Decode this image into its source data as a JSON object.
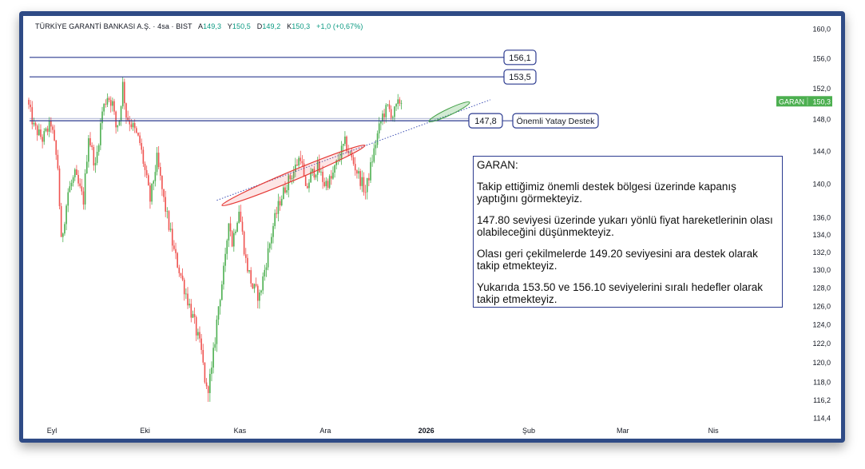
{
  "header": {
    "symbol": "TÜRKİYE GARANTİ BANKASI A.Ş. · 4sa · BIST",
    "open_label": "A",
    "open_value": "149,3",
    "high_label": "Y",
    "high_value": "150,5",
    "low_label": "D",
    "low_value": "149,2",
    "close_label": "K",
    "close_value": "150,3",
    "change": "+1,0 (+0,67%)"
  },
  "price_tag": {
    "ticker": "GARAN",
    "price": "150,3",
    "value": 150.3
  },
  "levels": [
    {
      "label": "156,1",
      "value": 156.1
    },
    {
      "label": "153,5",
      "value": 153.5
    },
    {
      "label": "147,8",
      "value": 147.8,
      "note": "Önemli Yatay Destek"
    }
  ],
  "note": {
    "title": "GARAN:",
    "paragraphs": [
      "Takip ettiğimiz önemli destek bölgesi üzerinde kapanış yaptığını görmekteyiz.",
      "147.80 seviyesi üzerinde yukarı yönlü fiyat hareketlerinin olası olabileceğini düşünmekteyiz.",
      "Olası geri çekilmelerde 149.20 seviyesini ara destek olarak takip etmekteyiz.",
      "Yukarıda 153.50 ve 156.10 seviyelerini sıralı hedefler olarak takip etmekteyiz."
    ]
  },
  "colors": {
    "up": "#4caf50",
    "down": "#ef5350",
    "level_line": "#2b3a8f",
    "frame": "#2f4b86",
    "tag": "#4caf50"
  },
  "chart_data": {
    "type": "candlestick",
    "y_scale": "log",
    "ylim": [
      113.5,
      161.0
    ],
    "y_ticks": [
      "160,0",
      "156,0",
      "152,0",
      "148,0",
      "144,0",
      "140,0",
      "136,0",
      "134,0",
      "132,0",
      "130,0",
      "128,0",
      "126,0",
      "124,0",
      "122,0",
      "120,0",
      "118,0",
      "116,2",
      "114,4"
    ],
    "y_tick_values": [
      160,
      156,
      152,
      148,
      144,
      140,
      136,
      134,
      132,
      130,
      128,
      126,
      124,
      122,
      120,
      118,
      116.2,
      114.4
    ],
    "x_ticks": [
      {
        "label": "Eyl",
        "bold": false
      },
      {
        "label": "Eki",
        "bold": false
      },
      {
        "label": "Kas",
        "bold": false
      },
      {
        "label": "Ara",
        "bold": false
      },
      {
        "label": "2026",
        "bold": true
      },
      {
        "label": "Şub",
        "bold": false
      },
      {
        "label": "Mar",
        "bold": false
      },
      {
        "label": "Nis",
        "bold": false
      }
    ],
    "x_tick_positions": [
      0,
      54.5,
      110,
      160,
      219,
      279,
      334,
      387
    ],
    "bar_count": 270,
    "trendline": {
      "from": {
        "bar": 110,
        "value": 138.0
      },
      "to": {
        "bar": 270,
        "value": 150.5
      },
      "style": "dotted"
    },
    "highlights": [
      {
        "center_bar": 140,
        "center_value": 141.5,
        "span_bars": 82
      },
      {
        "center_bar": 255,
        "center_value": 149.0,
        "span_bars": 28
      }
    ],
    "path_anchors": [
      [
        0,
        150.5
      ],
      [
        4,
        147
      ],
      [
        9,
        145.5
      ],
      [
        14,
        147.5
      ],
      [
        18,
        142
      ],
      [
        20,
        133
      ],
      [
        24,
        139
      ],
      [
        28,
        141
      ],
      [
        33,
        138
      ],
      [
        36,
        146
      ],
      [
        40,
        142
      ],
      [
        44,
        149
      ],
      [
        47,
        151
      ],
      [
        50,
        150
      ],
      [
        52,
        147
      ],
      [
        54,
        148
      ],
      [
        56,
        152.5
      ],
      [
        58,
        148.5
      ],
      [
        62,
        147
      ],
      [
        66,
        145
      ],
      [
        72,
        138
      ],
      [
        76,
        143
      ],
      [
        80,
        138
      ],
      [
        86,
        132
      ],
      [
        92,
        128
      ],
      [
        98,
        124
      ],
      [
        102,
        121
      ],
      [
        105,
        117
      ],
      [
        108,
        119
      ],
      [
        112,
        126
      ],
      [
        116,
        131
      ],
      [
        118,
        136
      ],
      [
        120,
        133
      ],
      [
        124,
        137
      ],
      [
        128,
        131
      ],
      [
        132,
        128
      ],
      [
        136,
        127
      ],
      [
        140,
        131
      ],
      [
        144,
        135
      ],
      [
        148,
        138
      ],
      [
        152,
        140
      ],
      [
        156,
        141.5
      ],
      [
        160,
        143.5
      ],
      [
        163,
        139
      ],
      [
        166,
        141
      ],
      [
        170,
        142
      ],
      [
        174,
        140
      ],
      [
        178,
        140.5
      ],
      [
        182,
        143
      ],
      [
        186,
        145
      ],
      [
        190,
        143
      ],
      [
        194,
        141
      ],
      [
        198,
        139
      ],
      [
        202,
        143
      ],
      [
        205,
        146
      ],
      [
        208,
        148.5
      ],
      [
        211,
        149.5
      ],
      [
        214,
        148.5
      ],
      [
        218,
        150.3
      ]
    ]
  }
}
